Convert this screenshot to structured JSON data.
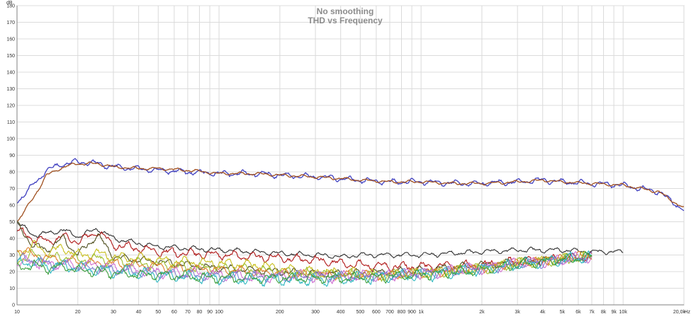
{
  "chart_data": {
    "type": "line",
    "title": "No smoothing",
    "subtitle": "THD vs Frequency",
    "ylabel": "dB",
    "xlabel": "Hz",
    "x_scale": "log",
    "xlim": [
      10,
      20000
    ],
    "ylim": [
      0,
      180
    ],
    "grid": true,
    "y_ticks": [
      "0",
      "10",
      "20",
      "30",
      "40",
      "50",
      "60",
      "70",
      "80",
      "90",
      "100",
      "110",
      "120",
      "130",
      "140",
      "150",
      "160",
      "170",
      "180"
    ],
    "x_ticks": [
      {
        "v": 10,
        "label": "10"
      },
      {
        "v": 20,
        "label": "20"
      },
      {
        "v": 30,
        "label": "30"
      },
      {
        "v": 40,
        "label": "40"
      },
      {
        "v": 50,
        "label": "50"
      },
      {
        "v": 60,
        "label": "60"
      },
      {
        "v": 70,
        "label": "70"
      },
      {
        "v": 80,
        "label": "80"
      },
      {
        "v": 90,
        "label": "90"
      },
      {
        "v": 100,
        "label": "100"
      },
      {
        "v": 200,
        "label": "200"
      },
      {
        "v": 300,
        "label": "300"
      },
      {
        "v": 400,
        "label": "400"
      },
      {
        "v": 500,
        "label": "500"
      },
      {
        "v": 600,
        "label": "600"
      },
      {
        "v": 700,
        "label": "700"
      },
      {
        "v": 800,
        "label": "800"
      },
      {
        "v": 900,
        "label": "900"
      },
      {
        "v": 1000,
        "label": "1k"
      },
      {
        "v": 2000,
        "label": "2k"
      },
      {
        "v": 3000,
        "label": "3k"
      },
      {
        "v": 4000,
        "label": "4k"
      },
      {
        "v": 5000,
        "label": "5k"
      },
      {
        "v": 6000,
        "label": "6k"
      },
      {
        "v": 7000,
        "label": "7k"
      },
      {
        "v": 8000,
        "label": "8k"
      },
      {
        "v": 9000,
        "label": "9k"
      },
      {
        "v": 10000,
        "label": "10k"
      },
      {
        "v": 20000,
        "label": "20,0k"
      }
    ],
    "series": [
      {
        "color": "#4040c0",
        "noise": 1.2,
        "x": [
          10,
          12,
          14,
          17,
          20,
          25,
          30,
          40,
          50,
          70,
          100,
          150,
          200,
          300,
          400,
          500,
          700,
          1000,
          1500,
          2000,
          3000,
          4000,
          5000,
          7000,
          10000,
          15000,
          20000
        ],
        "y": [
          62,
          72,
          81,
          85,
          86,
          85,
          83,
          82,
          81,
          80,
          79,
          79,
          78,
          77,
          76,
          75,
          74,
          74,
          73,
          73,
          74,
          75,
          74,
          73,
          72,
          68,
          57
        ]
      },
      {
        "color": "#a05020",
        "noise": 0.6,
        "x": [
          10,
          12,
          14,
          17,
          20,
          25,
          30,
          40,
          50,
          70,
          100,
          150,
          200,
          300,
          400,
          500,
          700,
          1000,
          1500,
          2000,
          3000,
          4000,
          5000,
          7000,
          10000,
          15000,
          20000
        ],
        "y": [
          50,
          64,
          78,
          83,
          85,
          85,
          83,
          82,
          82,
          81,
          79,
          79,
          78,
          77,
          76,
          75,
          74,
          74,
          73,
          73,
          74,
          75,
          74,
          73,
          72,
          68,
          58
        ]
      },
      {
        "color": "#303030",
        "noise": 1.0,
        "x": [
          10,
          12,
          14,
          17,
          20,
          25,
          30,
          40,
          50,
          70,
          100,
          150,
          200,
          300,
          400,
          500,
          700,
          1000,
          2000,
          3000,
          5000,
          7000,
          10000
        ],
        "y": [
          50,
          42,
          43,
          45,
          41,
          46,
          40,
          37,
          35,
          34,
          33,
          32,
          31,
          30,
          29,
          30,
          30,
          30,
          32,
          33,
          33,
          32,
          32
        ]
      },
      {
        "color": "#b01818",
        "noise": 1.8,
        "x": [
          10,
          12,
          14,
          17,
          20,
          25,
          30,
          40,
          50,
          70,
          100,
          150,
          200,
          300,
          400,
          500,
          700,
          1000,
          2000,
          3000,
          5000,
          7000
        ],
        "y": [
          45,
          40,
          38,
          41,
          38,
          44,
          36,
          34,
          32,
          31,
          30,
          29,
          28,
          27,
          25,
          24,
          23,
          23,
          24,
          26,
          28,
          29
        ]
      },
      {
        "color": "#505020",
        "noise": 1.5,
        "x": [
          10,
          12,
          14,
          17,
          20,
          25,
          30,
          40,
          50,
          70,
          100,
          150,
          200,
          300,
          500,
          700,
          1000,
          2000,
          3000,
          5000,
          7000
        ],
        "y": [
          48,
          36,
          33,
          40,
          30,
          42,
          29,
          27,
          26,
          24,
          22,
          21,
          20,
          19,
          19,
          20,
          21,
          24,
          26,
          28,
          29
        ]
      },
      {
        "color": "#c8c020",
        "noise": 2.0,
        "x": [
          10,
          12,
          14,
          17,
          20,
          25,
          30,
          40,
          50,
          70,
          100,
          150,
          200,
          300,
          500,
          700,
          1000,
          2000,
          3000,
          5000,
          7000
        ],
        "y": [
          30,
          36,
          32,
          34,
          30,
          31,
          29,
          28,
          27,
          26,
          25,
          24,
          22,
          20,
          19,
          18,
          19,
          22,
          25,
          28,
          29
        ]
      },
      {
        "color": "#a0c030",
        "noise": 2.0,
        "x": [
          10,
          12,
          14,
          17,
          20,
          25,
          30,
          40,
          50,
          70,
          100,
          150,
          200,
          300,
          500,
          700,
          1000,
          2000,
          3000,
          5000,
          7000
        ],
        "y": [
          27,
          30,
          28,
          29,
          27,
          28,
          26,
          25,
          24,
          23,
          22,
          21,
          20,
          19,
          18,
          18,
          19,
          22,
          25,
          27,
          29
        ]
      },
      {
        "color": "#e08030",
        "noise": 1.8,
        "x": [
          10,
          12,
          14,
          17,
          20,
          25,
          30,
          40,
          50,
          70,
          100,
          150,
          200,
          300,
          500,
          700,
          1000,
          2000,
          3000,
          5000,
          7000
        ],
        "y": [
          34,
          30,
          28,
          27,
          26,
          25,
          25,
          24,
          23,
          22,
          21,
          20,
          19,
          18,
          18,
          18,
          19,
          22,
          25,
          28,
          30
        ]
      },
      {
        "color": "#d070d0",
        "noise": 2.2,
        "x": [
          10,
          12,
          14,
          17,
          20,
          25,
          30,
          40,
          50,
          70,
          100,
          150,
          200,
          300,
          500,
          700,
          1000,
          2000,
          3000,
          5000,
          7000
        ],
        "y": [
          25,
          26,
          24,
          25,
          23,
          24,
          22,
          21,
          20,
          19,
          18,
          17,
          17,
          17,
          17,
          18,
          19,
          22,
          25,
          27,
          29
        ]
      },
      {
        "color": "#8080d0",
        "noise": 2.0,
        "x": [
          10,
          12,
          14,
          17,
          20,
          25,
          30,
          40,
          50,
          70,
          100,
          150,
          200,
          300,
          500,
          700,
          1000,
          2000,
          3000,
          5000,
          7000
        ],
        "y": [
          28,
          27,
          25,
          24,
          23,
          22,
          21,
          20,
          19,
          18,
          17,
          17,
          17,
          17,
          17,
          18,
          19,
          22,
          24,
          27,
          29
        ]
      },
      {
        "color": "#30b8c0",
        "noise": 2.4,
        "x": [
          10,
          12,
          14,
          17,
          20,
          25,
          30,
          40,
          50,
          70,
          100,
          150,
          200,
          300,
          500,
          700,
          1000,
          2000,
          3000,
          5000,
          7000
        ],
        "y": [
          24,
          26,
          23,
          24,
          22,
          21,
          20,
          19,
          18,
          17,
          16,
          15,
          15,
          15,
          16,
          17,
          18,
          21,
          24,
          27,
          29
        ]
      },
      {
        "color": "#40a040",
        "noise": 2.0,
        "x": [
          10,
          12,
          14,
          17,
          20,
          25,
          30,
          40,
          50,
          70,
          100,
          150,
          200,
          300,
          500,
          700,
          1000,
          2000,
          3000,
          5000,
          7000
        ],
        "y": [
          22,
          24,
          22,
          23,
          21,
          20,
          19,
          18,
          18,
          17,
          16,
          16,
          16,
          16,
          16,
          17,
          18,
          21,
          24,
          27,
          29
        ]
      }
    ]
  }
}
